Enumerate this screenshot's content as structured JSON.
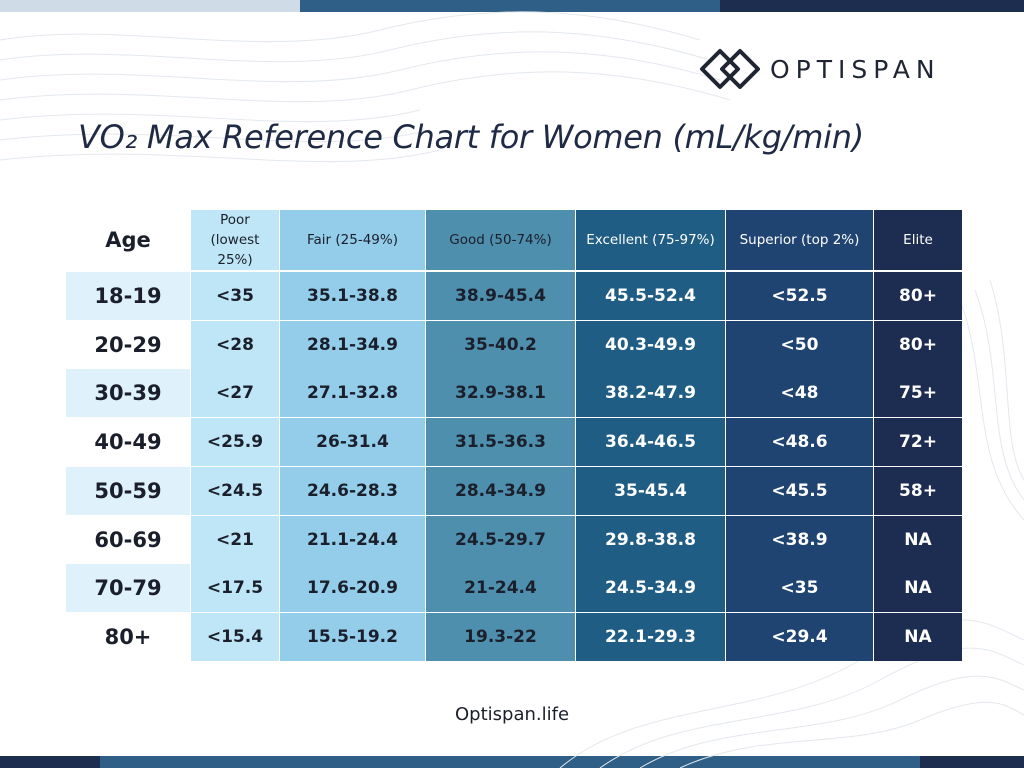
{
  "brand": {
    "name": "OPTISPAN",
    "logo_icon": "interlocking-diamonds-logo-icon"
  },
  "title": "VO₂ Max Reference Chart for Women (mL/kg/min)",
  "footer": "Optispan.life",
  "colors": {
    "navy": "#1c2d4f",
    "age_highlight": "#dff2fb",
    "poor": "#bfe6f6",
    "fair": "#93cdea",
    "good": "#4f8fae",
    "excellent": "#1f5d84",
    "superior": "#1f4472",
    "elite": "#1d2d52"
  },
  "chart_data": {
    "type": "table",
    "title": "VO₂ Max Reference Chart for Women (mL/kg/min)",
    "columns": [
      "Age",
      "Poor (lowest 25%)",
      "Fair (25-49%)",
      "Good (50-74%)",
      "Excellent (75-97%)",
      "Superior (top 2%)",
      "Elite"
    ],
    "rows": [
      [
        "18-19",
        "<35",
        "35.1-38.8",
        "38.9-45.4",
        "45.5-52.4",
        "<52.5",
        "80+"
      ],
      [
        "20-29",
        "<28",
        "28.1-34.9",
        "35-40.2",
        "40.3-49.9",
        "<50",
        "80+"
      ],
      [
        "30-39",
        "<27",
        "27.1-32.8",
        "32.9-38.1",
        "38.2-47.9",
        "<48",
        "75+"
      ],
      [
        "40-49",
        "<25.9",
        "26-31.4",
        "31.5-36.3",
        "36.4-46.5",
        "<48.6",
        "72+"
      ],
      [
        "50-59",
        "<24.5",
        "24.6-28.3",
        "28.4-34.9",
        "35-45.4",
        "<45.5",
        "58+"
      ],
      [
        "60-69",
        "<21",
        "21.1-24.4",
        "24.5-29.7",
        "29.8-38.8",
        "<38.9",
        "NA"
      ],
      [
        "70-79",
        "<17.5",
        "17.6-20.9",
        "21-24.4",
        "24.5-34.9",
        "<35",
        "NA"
      ],
      [
        "80+",
        "<15.4",
        "15.5-19.2",
        "19.3-22",
        "22.1-29.3",
        "<29.4",
        "NA"
      ]
    ]
  }
}
